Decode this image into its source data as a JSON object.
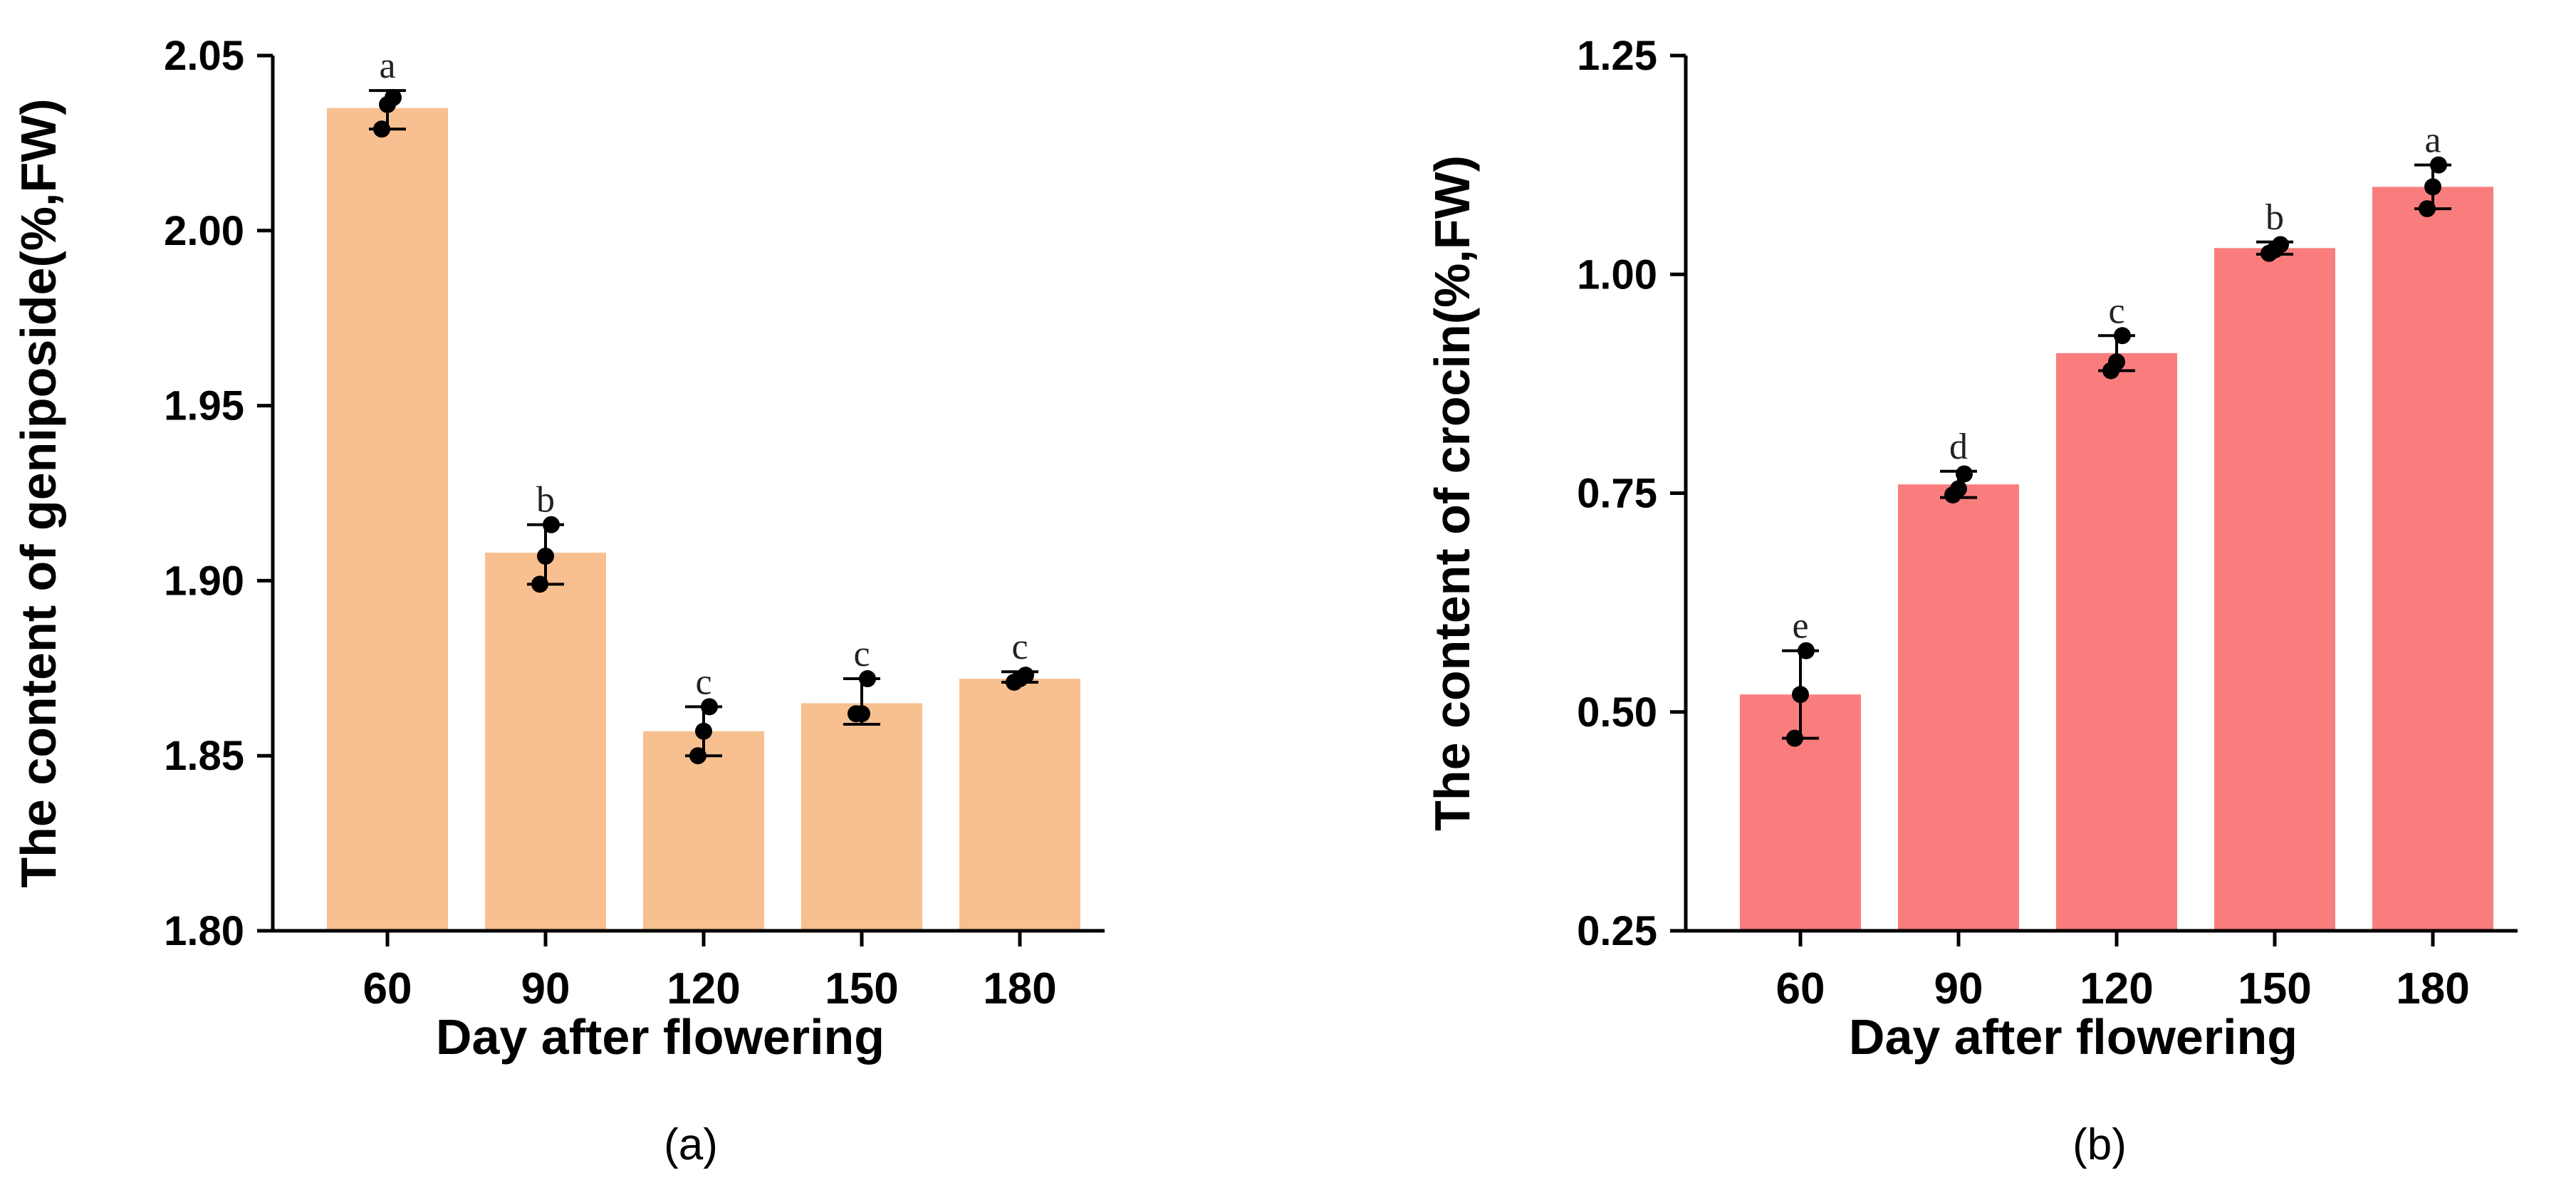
{
  "chart_data": [
    {
      "type": "bar",
      "panel_label": "(a)",
      "title": "",
      "xlabel": "Day after flowering",
      "ylabel": "The content of geniposide(%,FW)",
      "categories": [
        "60",
        "90",
        "120",
        "150",
        "180"
      ],
      "values": [
        2.035,
        1.908,
        1.857,
        1.865,
        1.872
      ],
      "errors": [
        [
          2.029,
          2.04
        ],
        [
          1.899,
          1.916
        ],
        [
          1.85,
          1.864
        ],
        [
          1.859,
          1.872
        ],
        [
          1.871,
          1.874
        ]
      ],
      "points": [
        [
          2.029,
          2.036,
          2.038
        ],
        [
          1.899,
          1.907,
          1.916
        ],
        [
          1.85,
          1.857,
          1.864
        ],
        [
          1.862,
          1.862,
          1.872
        ],
        [
          1.871,
          1.872,
          1.873
        ]
      ],
      "significance": [
        "a",
        "b",
        "c",
        "c",
        "c"
      ],
      "ylim": [
        1.8,
        2.05
      ],
      "yticks": [
        1.8,
        1.85,
        1.9,
        1.95,
        2.0,
        2.05
      ],
      "ytick_labels": [
        "1.80",
        "1.85",
        "1.90",
        "1.95",
        "2.00",
        "2.05"
      ],
      "bar_color": "#F8C090"
    },
    {
      "type": "bar",
      "panel_label": "(b)",
      "title": "",
      "xlabel": "Day after flowering",
      "ylabel": "The content of crocin(%,FW)",
      "categories": [
        "60",
        "90",
        "120",
        "150",
        "180"
      ],
      "values": [
        0.52,
        0.76,
        0.91,
        1.03,
        1.1
      ],
      "errors": [
        [
          0.47,
          0.57
        ],
        [
          0.745,
          0.775
        ],
        [
          0.89,
          0.93
        ],
        [
          1.023,
          1.037
        ],
        [
          1.075,
          1.125
        ]
      ],
      "points": [
        [
          0.47,
          0.52,
          0.57
        ],
        [
          0.748,
          0.755,
          0.772
        ],
        [
          0.89,
          0.9,
          0.93
        ],
        [
          1.024,
          1.028,
          1.034
        ],
        [
          1.075,
          1.1,
          1.125
        ]
      ],
      "significance": [
        "e",
        "d",
        "c",
        "b",
        "a"
      ],
      "ylim": [
        0.25,
        1.25
      ],
      "yticks": [
        0.25,
        0.5,
        0.75,
        1.0,
        1.25
      ],
      "ytick_labels": [
        "0.25",
        "0.50",
        "0.75",
        "1.00",
        "1.25"
      ],
      "bar_color": "#FA7D7D"
    }
  ]
}
